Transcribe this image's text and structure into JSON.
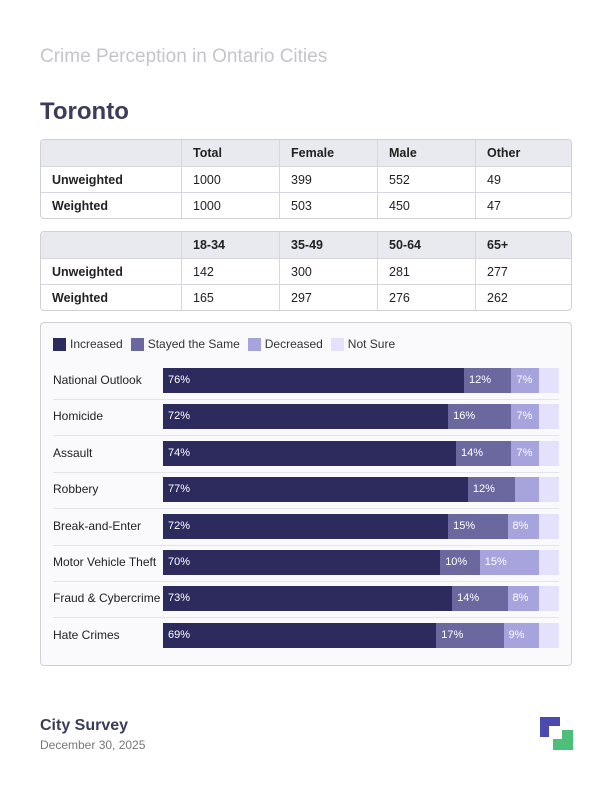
{
  "report_title": "Crime Perception in Ontario Cities",
  "city": "Toronto",
  "demographics": [
    {
      "headers": [
        "",
        "Total",
        "Female",
        "Male",
        "Other"
      ],
      "rows": [
        {
          "label": "Unweighted",
          "values": [
            "1000",
            "399",
            "552",
            "49"
          ]
        },
        {
          "label": "Weighted",
          "values": [
            "1000",
            "503",
            "450",
            "47"
          ]
        }
      ]
    },
    {
      "headers": [
        "",
        "18-34",
        "35-49",
        "50-64",
        "65+"
      ],
      "rows": [
        {
          "label": "Unweighted",
          "values": [
            "142",
            "300",
            "281",
            "277"
          ]
        },
        {
          "label": "Weighted",
          "values": [
            "165",
            "297",
            "276",
            "262"
          ]
        }
      ]
    }
  ],
  "colors": {
    "increased": "#2d2b5e",
    "stayed": "#6b68a0",
    "decreased": "#a7a3dc",
    "not_sure": "#e3e1fb"
  },
  "chart_data": {
    "type": "bar",
    "orientation": "horizontal",
    "stacked": true,
    "legend_position": "top-left",
    "xlim": [
      0,
      100
    ],
    "categories": [
      "National Outlook",
      "Homicide",
      "Assault",
      "Robbery",
      "Break-and-Enter",
      "Motor Vehicle Theft",
      "Fraud & Cybercrime",
      "Hate Crimes"
    ],
    "series": [
      {
        "name": "Increased",
        "values": [
          76,
          72,
          74,
          77,
          72,
          70,
          73,
          69
        ]
      },
      {
        "name": "Stayed the Same",
        "values": [
          12,
          16,
          14,
          12,
          15,
          10,
          14,
          17
        ]
      },
      {
        "name": "Decreased",
        "values": [
          7,
          7,
          7,
          6,
          8,
          15,
          8,
          9
        ]
      },
      {
        "name": "Not Sure",
        "values": [
          5,
          5,
          5,
          5,
          5,
          5,
          5,
          5
        ]
      }
    ],
    "labels": [
      [
        "76%",
        "12%",
        "7%",
        ""
      ],
      [
        "72%",
        "16%",
        "7%",
        ""
      ],
      [
        "74%",
        "14%",
        "7%",
        ""
      ],
      [
        "77%",
        "12%",
        "",
        ""
      ],
      [
        "72%",
        "15%",
        "8%",
        ""
      ],
      [
        "70%",
        "10%",
        "15%",
        ""
      ],
      [
        "73%",
        "14%",
        "8%",
        ""
      ],
      [
        "69%",
        "17%",
        "9%",
        ""
      ]
    ]
  },
  "footer": {
    "title": "City Survey",
    "date": "December 30, 2025"
  }
}
